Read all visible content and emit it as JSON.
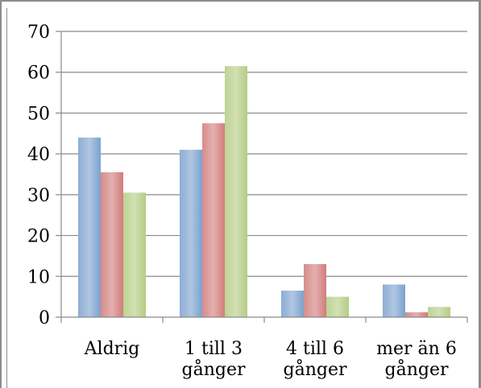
{
  "chart_data": {
    "type": "bar",
    "categories": [
      [
        "Aldrig"
      ],
      [
        "1 till 3",
        "gånger"
      ],
      [
        "4 till 6",
        "gånger"
      ],
      [
        "mer än 6",
        "gånger"
      ]
    ],
    "series": [
      {
        "color": "#4f81bd",
        "values": [
          44,
          41,
          6.5,
          8
        ]
      },
      {
        "color": "#c0504d",
        "values": [
          35.5,
          47.5,
          13,
          1.2
        ]
      },
      {
        "color": "#9bbb59",
        "values": [
          30.5,
          61.5,
          5,
          2.5
        ]
      }
    ],
    "ylim": [
      0,
      70
    ],
    "yticks": [
      0,
      10,
      20,
      30,
      40,
      50,
      60,
      70
    ],
    "title": "",
    "xlabel": "",
    "ylabel": "",
    "grid": true,
    "legend": "none"
  }
}
